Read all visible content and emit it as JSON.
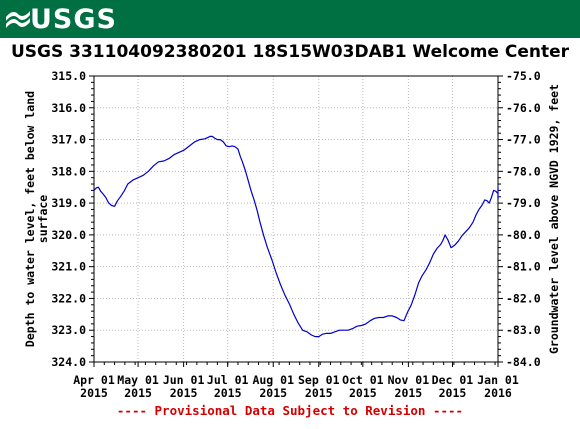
{
  "header": {
    "logo_text": "USGS",
    "brand_color": "#006f41"
  },
  "footnote": "---- Provisional Data Subject to Revision ----",
  "chart_data": {
    "type": "line",
    "title": "USGS 331104092380201 18S15W03DAB1 Welcome Center",
    "ylabel_left": "Depth to water level, feet below land surface",
    "ylabel_right": "Groundwater level above NGVD 1929, feet",
    "ylim_left": [
      324.0,
      315.0
    ],
    "ylim_right": [
      -84.0,
      -75.0
    ],
    "y_inverted_left": true,
    "yticks_left": [
      "315.0",
      "316.0",
      "317.0",
      "318.0",
      "319.0",
      "320.0",
      "321.0",
      "322.0",
      "323.0",
      "324.0"
    ],
    "yticks_right": [
      "-75.0",
      "-76.0",
      "-77.0",
      "-78.0",
      "-79.0",
      "-80.0",
      "-81.0",
      "-82.0",
      "-83.0",
      "-84.0"
    ],
    "xticks": [
      {
        "month": "Apr 01",
        "year": "2015"
      },
      {
        "month": "May 01",
        "year": "2015"
      },
      {
        "month": "Jun 01",
        "year": "2015"
      },
      {
        "month": "Jul 01",
        "year": "2015"
      },
      {
        "month": "Aug 01",
        "year": "2015"
      },
      {
        "month": "Sep 01",
        "year": "2015"
      },
      {
        "month": "Oct 01",
        "year": "2015"
      },
      {
        "month": "Nov 01",
        "year": "2015"
      },
      {
        "month": "Dec 01",
        "year": "2015"
      },
      {
        "month": "Jan 01",
        "year": "2016"
      }
    ],
    "grid": true,
    "line_color": "#0000cc",
    "series": [
      {
        "x": [
          "2015-03-28",
          "2015-04-01",
          "2015-04-04",
          "2015-04-07",
          "2015-04-11",
          "2015-04-15",
          "2015-04-19",
          "2015-04-24",
          "2015-05-01",
          "2015-05-08",
          "2015-05-15",
          "2015-05-22",
          "2015-05-29",
          "2015-06-05",
          "2015-06-12",
          "2015-06-19",
          "2015-06-22",
          "2015-06-26",
          "2015-06-30",
          "2015-07-04",
          "2015-07-08",
          "2015-07-11",
          "2015-07-15",
          "2015-07-19",
          "2015-07-23",
          "2015-07-28",
          "2015-08-03",
          "2015-08-09",
          "2015-08-15",
          "2015-08-21",
          "2015-08-27",
          "2015-09-01",
          "2015-09-06",
          "2015-09-12",
          "2015-09-18",
          "2015-09-24",
          "2015-09-30",
          "2015-10-06",
          "2015-10-12",
          "2015-10-18",
          "2015-10-24",
          "2015-10-29",
          "2015-11-03",
          "2015-11-08",
          "2015-11-13",
          "2015-11-18",
          "2015-11-23",
          "2015-11-26",
          "2015-11-30",
          "2015-12-05",
          "2015-12-10",
          "2015-12-15",
          "2015-12-19",
          "2015-12-23",
          "2015-12-26",
          "2015-12-29",
          "2016-01-02",
          "2016-01-05",
          "2016-01-07"
        ],
        "y": [
          318.6,
          318.6,
          318.5,
          318.7,
          319.0,
          319.1,
          318.8,
          318.4,
          318.2,
          318.0,
          317.7,
          317.6,
          317.4,
          317.2,
          317.0,
          316.9,
          316.95,
          317.0,
          317.2,
          317.2,
          317.3,
          317.7,
          318.3,
          318.9,
          319.6,
          320.4,
          321.2,
          321.9,
          322.5,
          323.0,
          323.15,
          323.2,
          323.1,
          323.05,
          323.0,
          322.95,
          322.85,
          322.7,
          322.6,
          322.55,
          322.6,
          322.7,
          322.2,
          321.5,
          321.1,
          320.6,
          320.3,
          320.0,
          320.4,
          320.2,
          319.9,
          319.6,
          319.2,
          318.9,
          319.0,
          318.6,
          318.7,
          318.5,
          318.9
        ]
      }
    ]
  }
}
